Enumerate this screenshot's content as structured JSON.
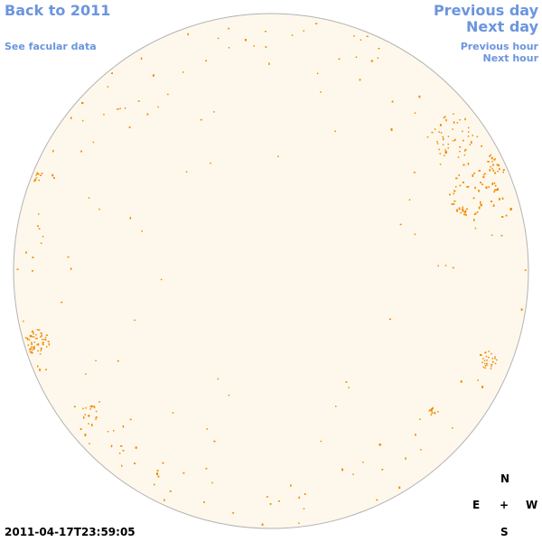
{
  "nav": {
    "back_label": "Back to 2011",
    "facular_label": "See facular data",
    "prev_day_label": "Previous day",
    "next_day_label": "Next day",
    "prev_hour_label": "Previous hour",
    "next_hour_label": "Next hour"
  },
  "timestamp": "2011-04-17T23:59:05",
  "compass": {
    "north": "N",
    "east": "E",
    "center": "+",
    "west": "W",
    "south": "S"
  },
  "colors": {
    "link": "#6b95de",
    "disk_fill": "#fef8ec",
    "disk_outline": "#b3b3b3",
    "feature": "#f08a00"
  }
}
